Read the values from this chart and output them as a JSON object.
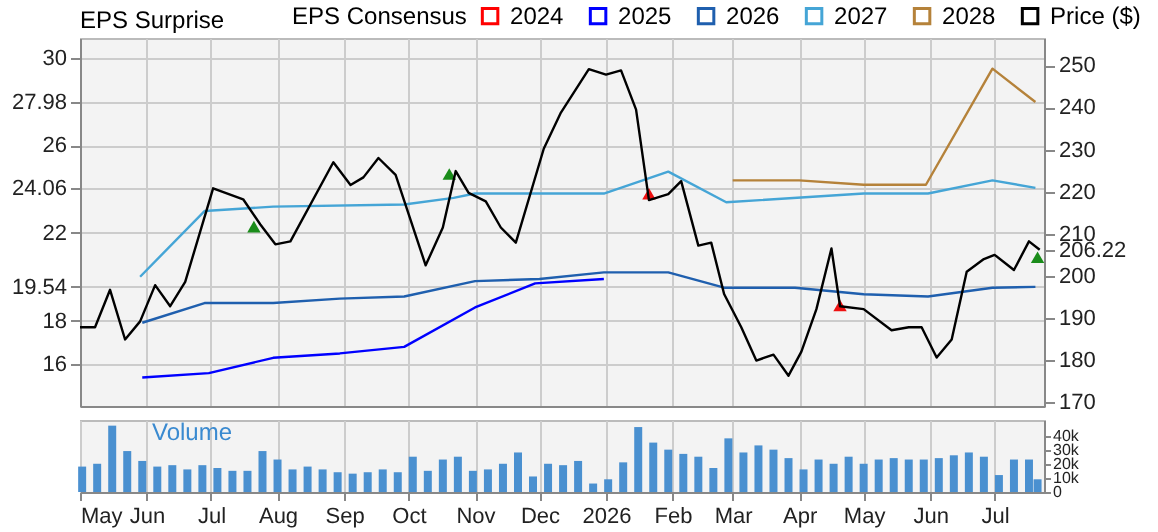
{
  "chart_data": [
    {
      "type": "line",
      "title": "EPS Surprise",
      "legend_title": "EPS Consensus",
      "legend": "top",
      "grid": true,
      "tick_labels": "y",
      "xlim": [
        "2025-05-01",
        "2026-07-24"
      ],
      "xticks": [
        {
          "value": "2025-05-01",
          "label": null
        },
        {
          "value": "2025-06-01",
          "label": null
        },
        {
          "value": "2025-07-01",
          "label": null
        },
        {
          "value": "2025-08-01",
          "label": null
        },
        {
          "value": "2025-09-01",
          "label": null
        },
        {
          "value": "2025-10-01",
          "label": null
        },
        {
          "value": "2025-11-01",
          "label": null
        },
        {
          "value": "2025-12-01",
          "label": null
        },
        {
          "value": "2026-01-01",
          "label": null
        },
        {
          "value": "2026-02-01",
          "label": null
        },
        {
          "value": "2026-03-01",
          "label": null
        },
        {
          "value": "2026-04-01",
          "label": null
        },
        {
          "value": "2026-05-01",
          "label": null
        },
        {
          "value": "2026-06-01",
          "label": null
        },
        {
          "value": "2026-07-01",
          "label": null
        }
      ],
      "ylim": [
        14.1,
        30.9
      ],
      "yticks": [
        16,
        18,
        19.54,
        22,
        24.06,
        26,
        27.98,
        30
      ],
      "y2lim": [
        169.1,
        256.5
      ],
      "y2ticks": [
        170,
        180,
        190,
        200,
        206.22,
        210,
        220,
        230,
        240,
        250
      ],
      "series": [
        {
          "name": "2024",
          "color": "#ff0000"
        },
        {
          "name": "2025",
          "color": "#0000ff",
          "x": [
            "2025-05-30",
            "2025-06-30",
            "2025-07-30",
            "2025-08-30",
            "2025-09-29",
            "2025-11-01",
            "2025-11-29",
            "2025-12-31"
          ],
          "values": [
            15.4,
            15.6,
            16.3,
            16.5,
            16.8,
            18.6,
            19.7,
            19.9
          ]
        },
        {
          "name": "2026",
          "color": "#1f5fae",
          "x": [
            "2025-05-30",
            "2025-06-28",
            "2025-07-30",
            "2025-08-30",
            "2025-09-29",
            "2025-11-01",
            "2025-12-01",
            "2025-12-31",
            "2026-01-30",
            "2026-02-25",
            "2026-03-30",
            "2026-05-01",
            "2026-05-31",
            "2026-06-30",
            "2026-07-20"
          ],
          "values": [
            17.9,
            18.8,
            18.8,
            19.0,
            19.1,
            19.8,
            19.9,
            20.2,
            20.2,
            19.5,
            19.5,
            19.2,
            19.1,
            19.5,
            19.54
          ]
        },
        {
          "name": "2027",
          "color": "#45a5d6",
          "x": [
            "2025-05-29",
            "2025-06-28",
            "2025-07-30",
            "2025-09-29",
            "2025-10-22",
            "2025-11-01",
            "2025-12-31",
            "2026-01-30",
            "2026-02-26",
            "2026-05-01",
            "2026-05-31",
            "2026-06-30",
            "2026-07-20"
          ],
          "values": [
            20.0,
            23.0,
            23.2,
            23.3,
            23.6,
            23.8,
            23.8,
            24.8,
            23.4,
            23.8,
            23.8,
            24.4,
            24.06
          ]
        },
        {
          "name": "2028",
          "color": "#b5823a",
          "x": [
            "2026-03-01",
            "2026-04-01",
            "2026-05-01",
            "2026-05-30",
            "2026-06-30",
            "2026-07-20"
          ],
          "values": [
            24.4,
            24.4,
            24.2,
            24.2,
            29.5,
            27.98
          ]
        },
        {
          "name": "Price ($)",
          "color": "#000000",
          "axis": "y2",
          "x": [
            "2025-05-01",
            "2025-05-08",
            "2025-05-15",
            "2025-05-22",
            "2025-05-29",
            "2025-06-05",
            "2025-06-12",
            "2025-06-19",
            "2025-07-02",
            "2025-07-16",
            "2025-07-24",
            "2025-07-31",
            "2025-08-07",
            "2025-08-27",
            "2025-09-04",
            "2025-09-10",
            "2025-09-17",
            "2025-09-25",
            "2025-10-09",
            "2025-10-17",
            "2025-10-23",
            "2025-10-29",
            "2025-11-06",
            "2025-11-13",
            "2025-11-20",
            "2025-12-03",
            "2025-12-11",
            "2025-12-24",
            "2026-01-01",
            "2026-01-08",
            "2026-01-15",
            "2026-01-21",
            "2026-01-30",
            "2026-02-05",
            "2026-02-13",
            "2026-02-19",
            "2026-02-25",
            "2026-03-05",
            "2026-03-12",
            "2026-03-20",
            "2026-03-27",
            "2026-04-02",
            "2026-04-09",
            "2026-04-16",
            "2026-04-20",
            "2026-05-01",
            "2026-05-14",
            "2026-05-22",
            "2026-05-28",
            "2026-06-04",
            "2026-06-11",
            "2026-06-18",
            "2026-06-26",
            "2026-07-01",
            "2026-07-10",
            "2026-07-17",
            "2026-07-22"
          ],
          "values": [
            187.8,
            187.8,
            196.7,
            184.9,
            189.2,
            197.8,
            192.8,
            198.6,
            220.8,
            218.2,
            212.2,
            207.5,
            208.2,
            227,
            221.6,
            223.4,
            228,
            224,
            202.5,
            211.5,
            224.9,
            219.7,
            217.7,
            211.5,
            207.9,
            230.2,
            238.8,
            249.1,
            247.8,
            248.8,
            239.5,
            218,
            219.4,
            222.5,
            207.2,
            207.9,
            195.7,
            187.8,
            179.9,
            181.3,
            176.3,
            182,
            192.1,
            206.5,
            192.8,
            192.1,
            187.1,
            187.8,
            187.8,
            180.6,
            184.9,
            201,
            204,
            205,
            201.4,
            208.2,
            206.22
          ]
        },
        {
          "type": "scatter",
          "color": "#1a8c1a",
          "marker": "triangle",
          "x": [
            "2025-07-21",
            "2025-10-20",
            "2026-07-21"
          ],
          "values": [
            22.2,
            24.6,
            20.8
          ]
        },
        {
          "type": "scatter",
          "color": "#ee1111",
          "marker": "triangle",
          "x": [
            "2026-01-21",
            "2026-04-20"
          ],
          "values": [
            23.7,
            18.6
          ]
        }
      ]
    },
    {
      "type": "bar",
      "title": "Volume",
      "grid": "x",
      "color": "#4a90d0",
      "xlim": [
        "2025-05-01",
        "2026-07-24"
      ],
      "xticks": [
        {
          "value": "2025-05-01",
          "label": "May"
        },
        {
          "value": "2025-06-01",
          "label": "Jun"
        },
        {
          "value": "2025-07-01",
          "label": "Jul"
        },
        {
          "value": "2025-08-01",
          "label": "Aug"
        },
        {
          "value": "2025-09-01",
          "label": "Sep"
        },
        {
          "value": "2025-10-01",
          "label": "Oct"
        },
        {
          "value": "2025-11-01",
          "label": "Nov"
        },
        {
          "value": "2025-12-01",
          "label": "Dec"
        },
        {
          "value": "2026-01-01",
          "label": "2026"
        },
        {
          "value": "2026-02-01",
          "label": "Feb"
        },
        {
          "value": "2026-03-01",
          "label": "Mar"
        },
        {
          "value": "2026-04-01",
          "label": "Apr"
        },
        {
          "value": "2026-05-01",
          "label": "May"
        },
        {
          "value": "2026-06-01",
          "label": "Jun"
        },
        {
          "value": "2026-07-01",
          "label": "Jul"
        }
      ],
      "ylim": [
        0,
        51
      ],
      "yticks": [
        0,
        {
          "value": 10,
          "label": "10k"
        },
        {
          "value": 20,
          "label": "20k"
        },
        {
          "value": 30,
          "label": "30k"
        },
        {
          "value": 40,
          "label": "40k"
        }
      ],
      "x": [
        "2025-05-02",
        "2025-05-09",
        "2025-05-16",
        "2025-05-23",
        "2025-05-30",
        "2025-06-06",
        "2025-06-13",
        "2025-06-20",
        "2025-06-27",
        "2025-07-04",
        "2025-07-11",
        "2025-07-18",
        "2025-07-25",
        "2025-08-01",
        "2025-08-08",
        "2025-08-15",
        "2025-08-22",
        "2025-08-29",
        "2025-09-05",
        "2025-09-12",
        "2025-09-19",
        "2025-09-26",
        "2025-10-03",
        "2025-10-10",
        "2025-10-17",
        "2025-10-24",
        "2025-10-31",
        "2025-11-07",
        "2025-11-14",
        "2025-11-21",
        "2025-11-28",
        "2025-12-05",
        "2025-12-12",
        "2025-12-19",
        "2025-12-26",
        "2026-01-02",
        "2026-01-09",
        "2026-01-16",
        "2026-01-23",
        "2026-01-30",
        "2026-02-06",
        "2026-02-13",
        "2026-02-20",
        "2026-02-27",
        "2026-03-06",
        "2026-03-13",
        "2026-03-20",
        "2026-03-27",
        "2026-04-03",
        "2026-04-10",
        "2026-04-17",
        "2026-04-24",
        "2026-05-01",
        "2026-05-08",
        "2026-05-15",
        "2026-05-22",
        "2026-05-29",
        "2026-06-05",
        "2026-06-12",
        "2026-06-19",
        "2026-06-26",
        "2026-07-03",
        "2026-07-10",
        "2026-07-17",
        "2026-07-21"
      ],
      "values": [
        18,
        20,
        47,
        29,
        22,
        18,
        19,
        16,
        19,
        17,
        15,
        15,
        29,
        23,
        16,
        18,
        16,
        14,
        13,
        14,
        16,
        14,
        25,
        15,
        23,
        25,
        15,
        16,
        20,
        28,
        11,
        20,
        19,
        22,
        6,
        9,
        21,
        46,
        35,
        30,
        27,
        25,
        17,
        38,
        28,
        33,
        30,
        24,
        16,
        23,
        20,
        25,
        20,
        23,
        24,
        23,
        23,
        24,
        26,
        28,
        25,
        12,
        23,
        23,
        9
      ]
    }
  ]
}
